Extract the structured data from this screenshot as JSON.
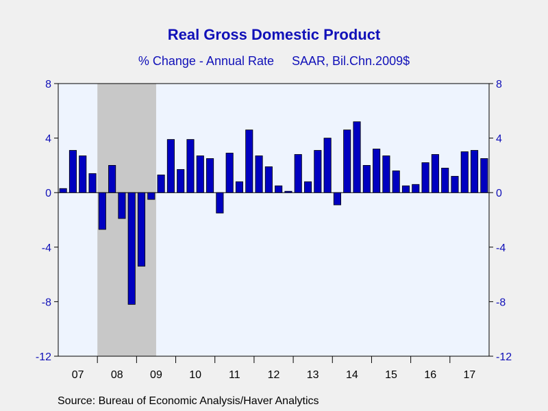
{
  "title": "Real Gross Domestic Product",
  "subtitle_left": "% Change - Annual Rate",
  "subtitle_right": "SAAR, Bil.Chn.2009$",
  "source": "Source:  Bureau of Economic Analysis/Haver Analytics",
  "colors": {
    "bar": "#0000c0",
    "bar_edge": "#000000",
    "plot_bg": "#eef4fe",
    "recession": "#c8c8c8",
    "axis_labels": "#1010b8",
    "title": "#1010b8"
  },
  "chart_data": {
    "type": "bar",
    "frequency": "quarterly",
    "start": "2007 Q1",
    "ylim": [
      -12,
      8
    ],
    "yticks": [
      8,
      4,
      0,
      -4,
      -8,
      -12
    ],
    "ytick_labels": [
      "8",
      "4",
      "0",
      "-4",
      "-8",
      "-12"
    ],
    "y_axis": "both sides",
    "grid": false,
    "xtick_labels": [
      "07",
      "08",
      "09",
      "10",
      "11",
      "12",
      "13",
      "14",
      "15",
      "16",
      "17"
    ],
    "recession": {
      "start": "2008 Q1",
      "end": "2009 Q2"
    },
    "categories": [
      "2007 Q1",
      "2007 Q2",
      "2007 Q3",
      "2007 Q4",
      "2008 Q1",
      "2008 Q2",
      "2008 Q3",
      "2008 Q4",
      "2009 Q1",
      "2009 Q2",
      "2009 Q3",
      "2009 Q4",
      "2010 Q1",
      "2010 Q2",
      "2010 Q3",
      "2010 Q4",
      "2011 Q1",
      "2011 Q2",
      "2011 Q3",
      "2011 Q4",
      "2012 Q1",
      "2012 Q2",
      "2012 Q3",
      "2012 Q4",
      "2013 Q1",
      "2013 Q2",
      "2013 Q3",
      "2013 Q4",
      "2014 Q1",
      "2014 Q2",
      "2014 Q3",
      "2014 Q4",
      "2015 Q1",
      "2015 Q2",
      "2015 Q3",
      "2015 Q4",
      "2016 Q1",
      "2016 Q2",
      "2016 Q3",
      "2016 Q4",
      "2017 Q1",
      "2017 Q2",
      "2017 Q3",
      "2017 Q4"
    ],
    "values": [
      0.3,
      3.1,
      2.7,
      1.4,
      -2.7,
      2.0,
      -1.9,
      -8.2,
      -5.4,
      -0.5,
      1.3,
      3.9,
      1.7,
      3.9,
      2.7,
      2.5,
      -1.5,
      2.9,
      0.8,
      4.6,
      2.7,
      1.9,
      0.5,
      0.1,
      2.8,
      0.8,
      3.1,
      4.0,
      -0.9,
      4.6,
      5.2,
      2.0,
      3.2,
      2.7,
      1.6,
      0.5,
      0.6,
      2.2,
      2.8,
      1.8,
      1.2,
      3.0,
      3.1,
      2.5
    ]
  }
}
